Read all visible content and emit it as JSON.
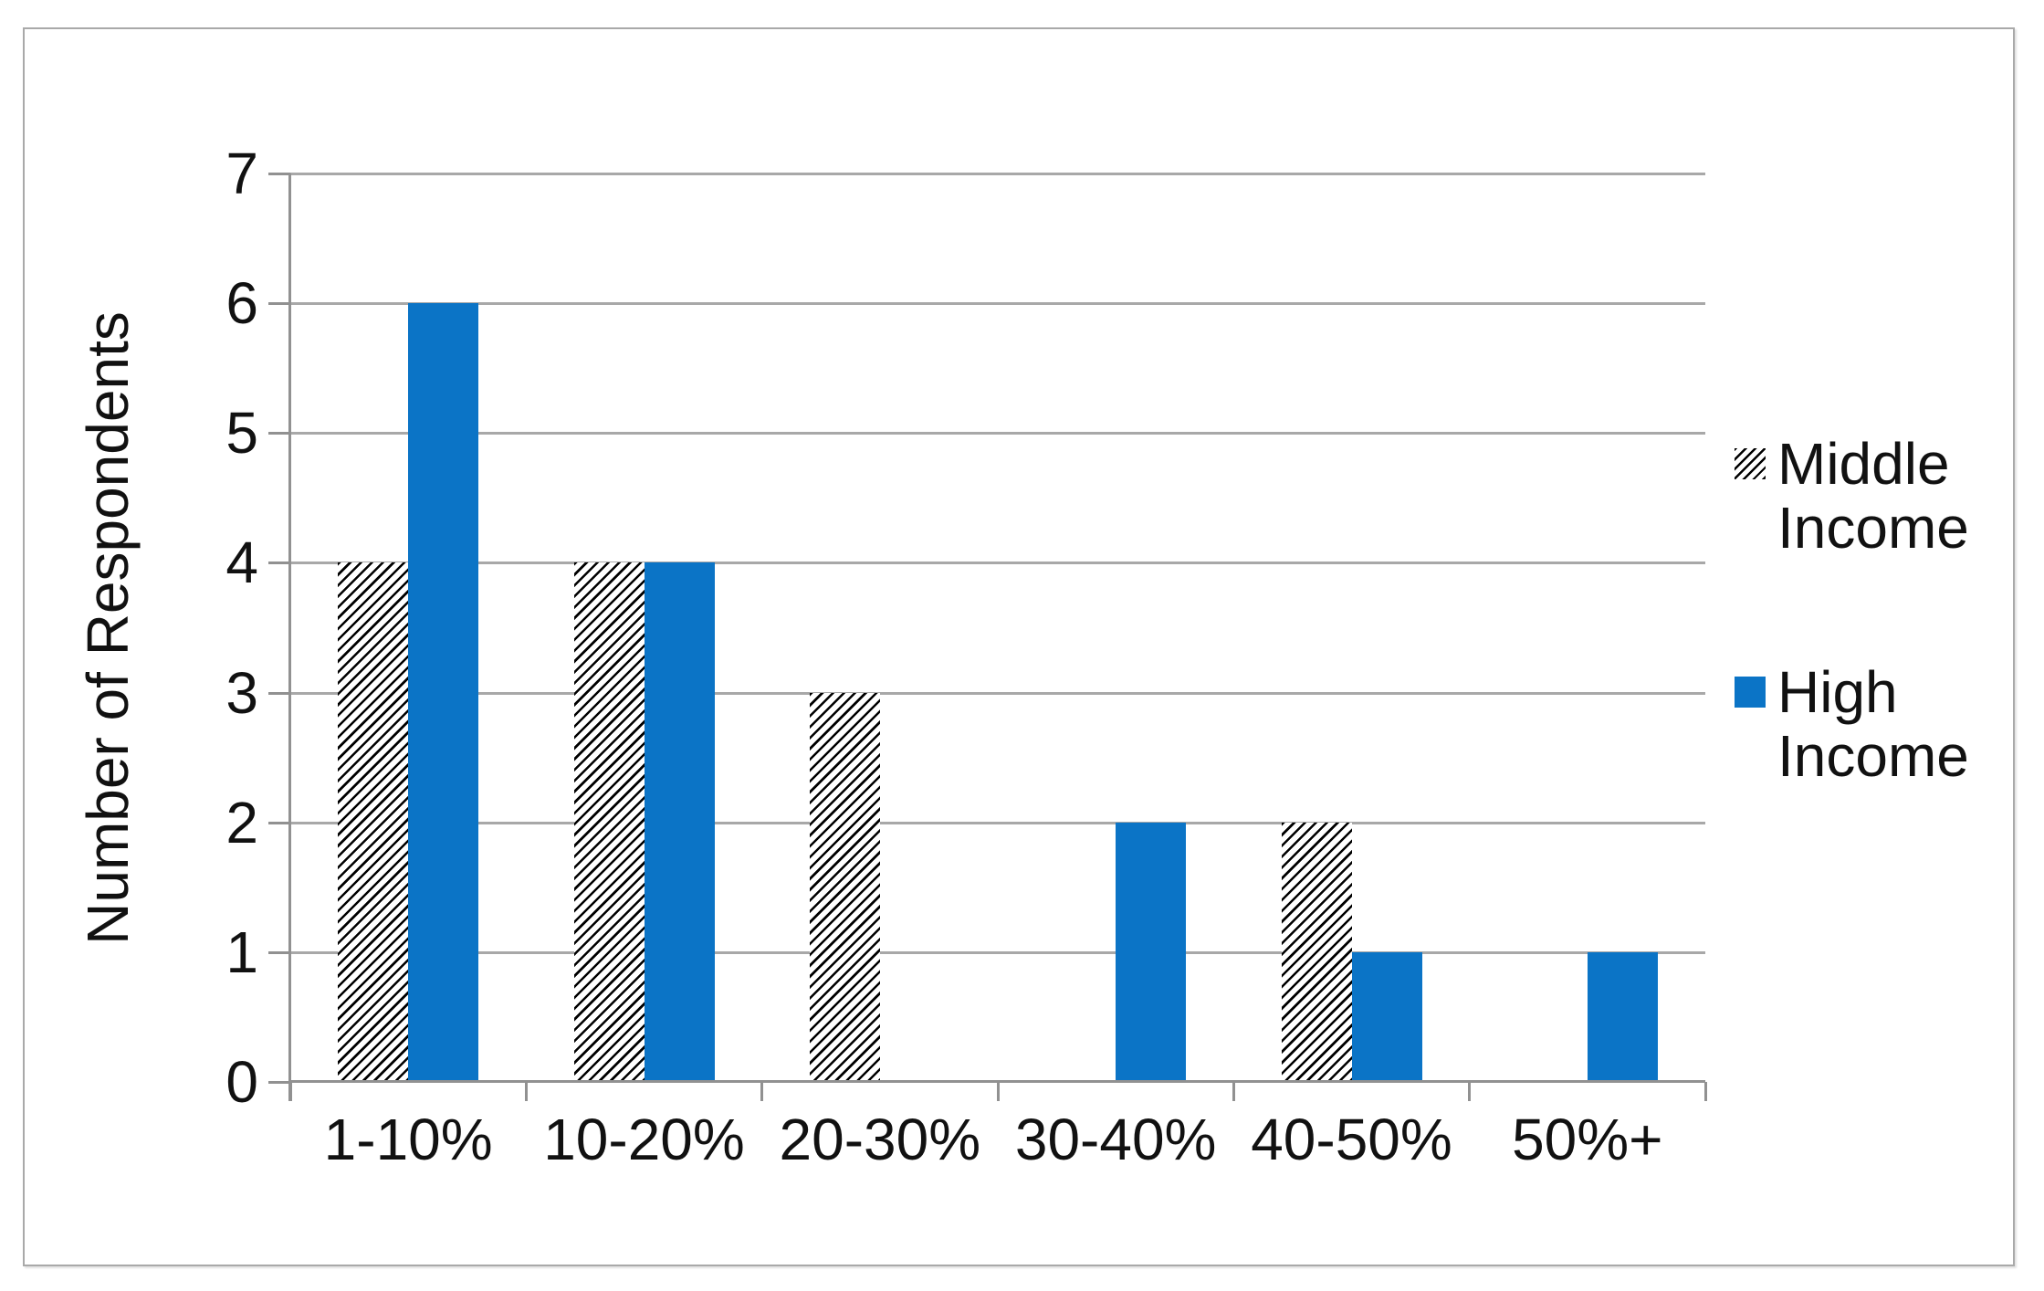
{
  "chart_data": {
    "type": "bar",
    "title": "",
    "categories": [
      "1-10%",
      "10-20%",
      "20-30%",
      "30-40%",
      "40-50%",
      "50%+"
    ],
    "series": [
      {
        "name": "Middle Income",
        "pattern": "diagonal-hatch",
        "fill": "#FFFFFF",
        "line": "#000000",
        "values": [
          4,
          4,
          3,
          0,
          2,
          0
        ]
      },
      {
        "name": "High Income",
        "pattern": "solid",
        "fill": "#0B74C6",
        "values": [
          6,
          4,
          0,
          2,
          1,
          1
        ]
      }
    ],
    "xlabel": "",
    "ylabel": "Number of Respondents",
    "ylim": [
      0,
      7
    ],
    "yticks": [
      "0",
      "1",
      "2",
      "3",
      "4",
      "5",
      "6",
      "7"
    ],
    "grid": true,
    "gridlines": "horizontal-major",
    "legend_position": "right-middle"
  },
  "colors": {
    "bar_blue": "#0B74C6",
    "hatch_line": "#000000",
    "gridline": "#A8A8A8",
    "axis_line": "#919191",
    "text": "#111111",
    "frame_border": "#A9A9A9",
    "background": "#FFFFFF"
  }
}
